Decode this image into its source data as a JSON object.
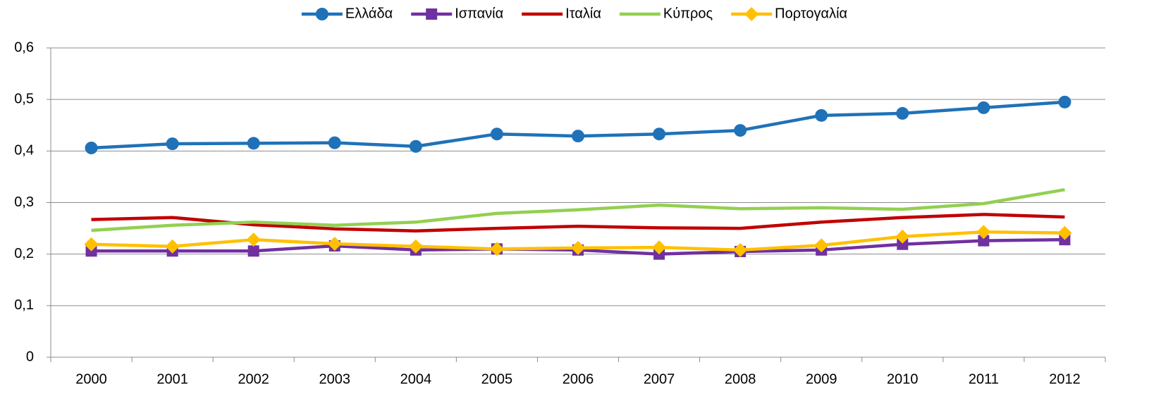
{
  "chart_data": {
    "type": "line",
    "categories": [
      "2000",
      "2001",
      "2002",
      "2003",
      "2004",
      "2005",
      "2006",
      "2007",
      "2008",
      "2009",
      "2010",
      "2011",
      "2012"
    ],
    "series": [
      {
        "name": "Ελλάδα",
        "color": "#1f72b8",
        "marker": "circle",
        "values": [
          0.406,
          0.414,
          0.415,
          0.416,
          0.409,
          0.433,
          0.429,
          0.433,
          0.44,
          0.469,
          0.473,
          0.484,
          0.495
        ]
      },
      {
        "name": "Ισπανία",
        "color": "#7030a0",
        "marker": "square",
        "values": [
          0.206,
          0.206,
          0.206,
          0.216,
          0.208,
          0.21,
          0.208,
          0.2,
          0.205,
          0.208,
          0.219,
          0.226,
          0.228
        ]
      },
      {
        "name": "Ιταλία",
        "color": "#c00000",
        "marker": "none",
        "values": [
          0.267,
          0.271,
          0.257,
          0.249,
          0.245,
          0.25,
          0.254,
          0.251,
          0.25,
          0.262,
          0.271,
          0.277,
          0.272
        ]
      },
      {
        "name": "Κύπρος",
        "color": "#92d050",
        "marker": "none",
        "values": [
          0.246,
          0.256,
          0.262,
          0.256,
          0.262,
          0.279,
          0.286,
          0.295,
          0.288,
          0.29,
          0.287,
          0.298,
          0.325
        ]
      },
      {
        "name": "Πορτογαλία",
        "color": "#ffc000",
        "marker": "diamond",
        "values": [
          0.219,
          0.215,
          0.228,
          0.22,
          0.215,
          0.21,
          0.212,
          0.213,
          0.208,
          0.217,
          0.234,
          0.243,
          0.241
        ]
      }
    ],
    "ylim": [
      0,
      0.6
    ],
    "yticks": [
      0,
      {
        "value": 0.1,
        "label": "0,1"
      },
      {
        "value": 0.2,
        "label": "0,2"
      },
      {
        "value": 0.3,
        "label": "0,3"
      },
      {
        "value": 0.4,
        "label": "0,4"
      },
      {
        "value": 0.5,
        "label": "0,5"
      },
      {
        "value": 0.6,
        "label": "0,6"
      }
    ],
    "grid": true,
    "legend": "top"
  }
}
